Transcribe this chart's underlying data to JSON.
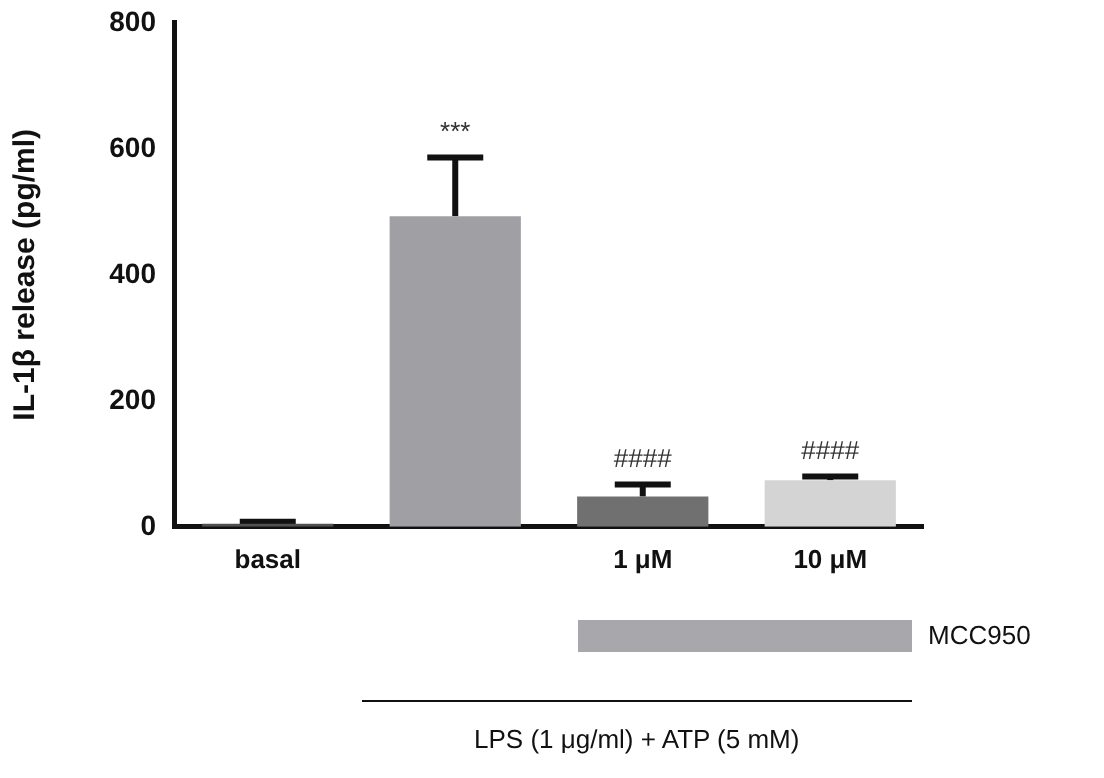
{
  "chart_data": {
    "type": "bar",
    "ylabel": "IL-1β release (pg/ml)",
    "categories": [
      "basal",
      null,
      "1 μM",
      "10 μM"
    ],
    "values": [
      5,
      493,
      48,
      74
    ],
    "errors": [
      3,
      93,
      19,
      6
    ],
    "value_labels": [
      null,
      "***",
      "####",
      "####"
    ],
    "colors": [
      "#505050",
      "#a0a0a4",
      "#707070",
      "#d4d4d4"
    ],
    "ylim": [
      0,
      800
    ],
    "yticks": [
      0,
      200,
      400,
      600,
      800
    ],
    "grid": false,
    "legend": false,
    "annotations": [
      "MCC950",
      "LPS (1 μg/ml) + ATP (5 mM)"
    ]
  }
}
